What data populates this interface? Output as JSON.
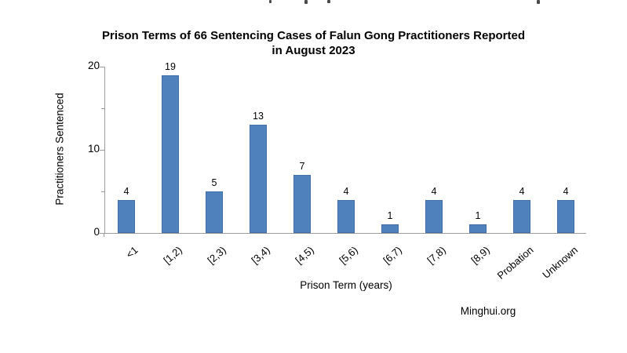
{
  "chart_data": {
    "type": "bar",
    "title": "Prison Terms of 66 Sentencing Cases of Falun Gong Practitioners Reported in August 2023",
    "title_lines": [
      "Prison Terms of 66 Sentencing Cases of Falun Gong Practitioners Reported",
      "in August 2023"
    ],
    "xlabel": "Prison Term (years)",
    "ylabel": "Practitioners Sentenced",
    "categories": [
      "<1",
      "[1,2)",
      "[2,3)",
      "[3,4)",
      "[4,5)",
      "[5,6)",
      "[6,7)",
      "[7,8)",
      "[8,9)",
      "Probation",
      "Unknown"
    ],
    "values": [
      4,
      19,
      5,
      13,
      7,
      4,
      1,
      4,
      1,
      4,
      4
    ],
    "ylim": [
      0,
      20
    ],
    "yticks_major": [
      0,
      10,
      20
    ],
    "yticks_minor": [
      5,
      15
    ],
    "grid": false,
    "legend": "none",
    "bar_color": "#4F81BD",
    "axis_color": "#9B9B9B",
    "text_color": "#000000",
    "background_color": "#FFFFFF"
  },
  "footer": {
    "source_label": "Minghui.org"
  }
}
